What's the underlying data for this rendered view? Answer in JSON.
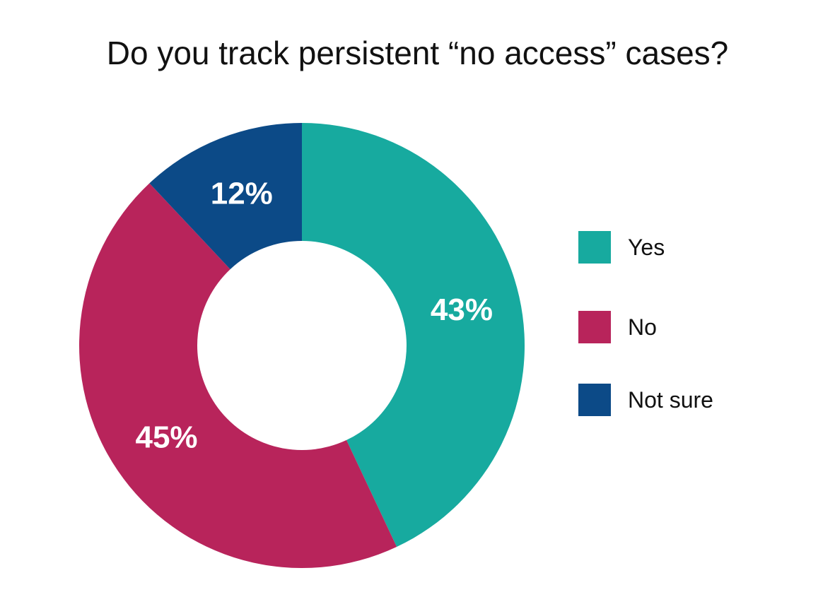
{
  "chart_data": {
    "type": "pie",
    "donut": true,
    "title": "Do you track persistent “no access” cases?",
    "categories": [
      "Yes",
      "No",
      "Not sure"
    ],
    "values": [
      43,
      45,
      12
    ],
    "labels": [
      "43%",
      "45%",
      "12%"
    ],
    "colors": [
      "#17aa9f",
      "#b8245b",
      "#0c4a87"
    ],
    "legend_position": "right"
  }
}
